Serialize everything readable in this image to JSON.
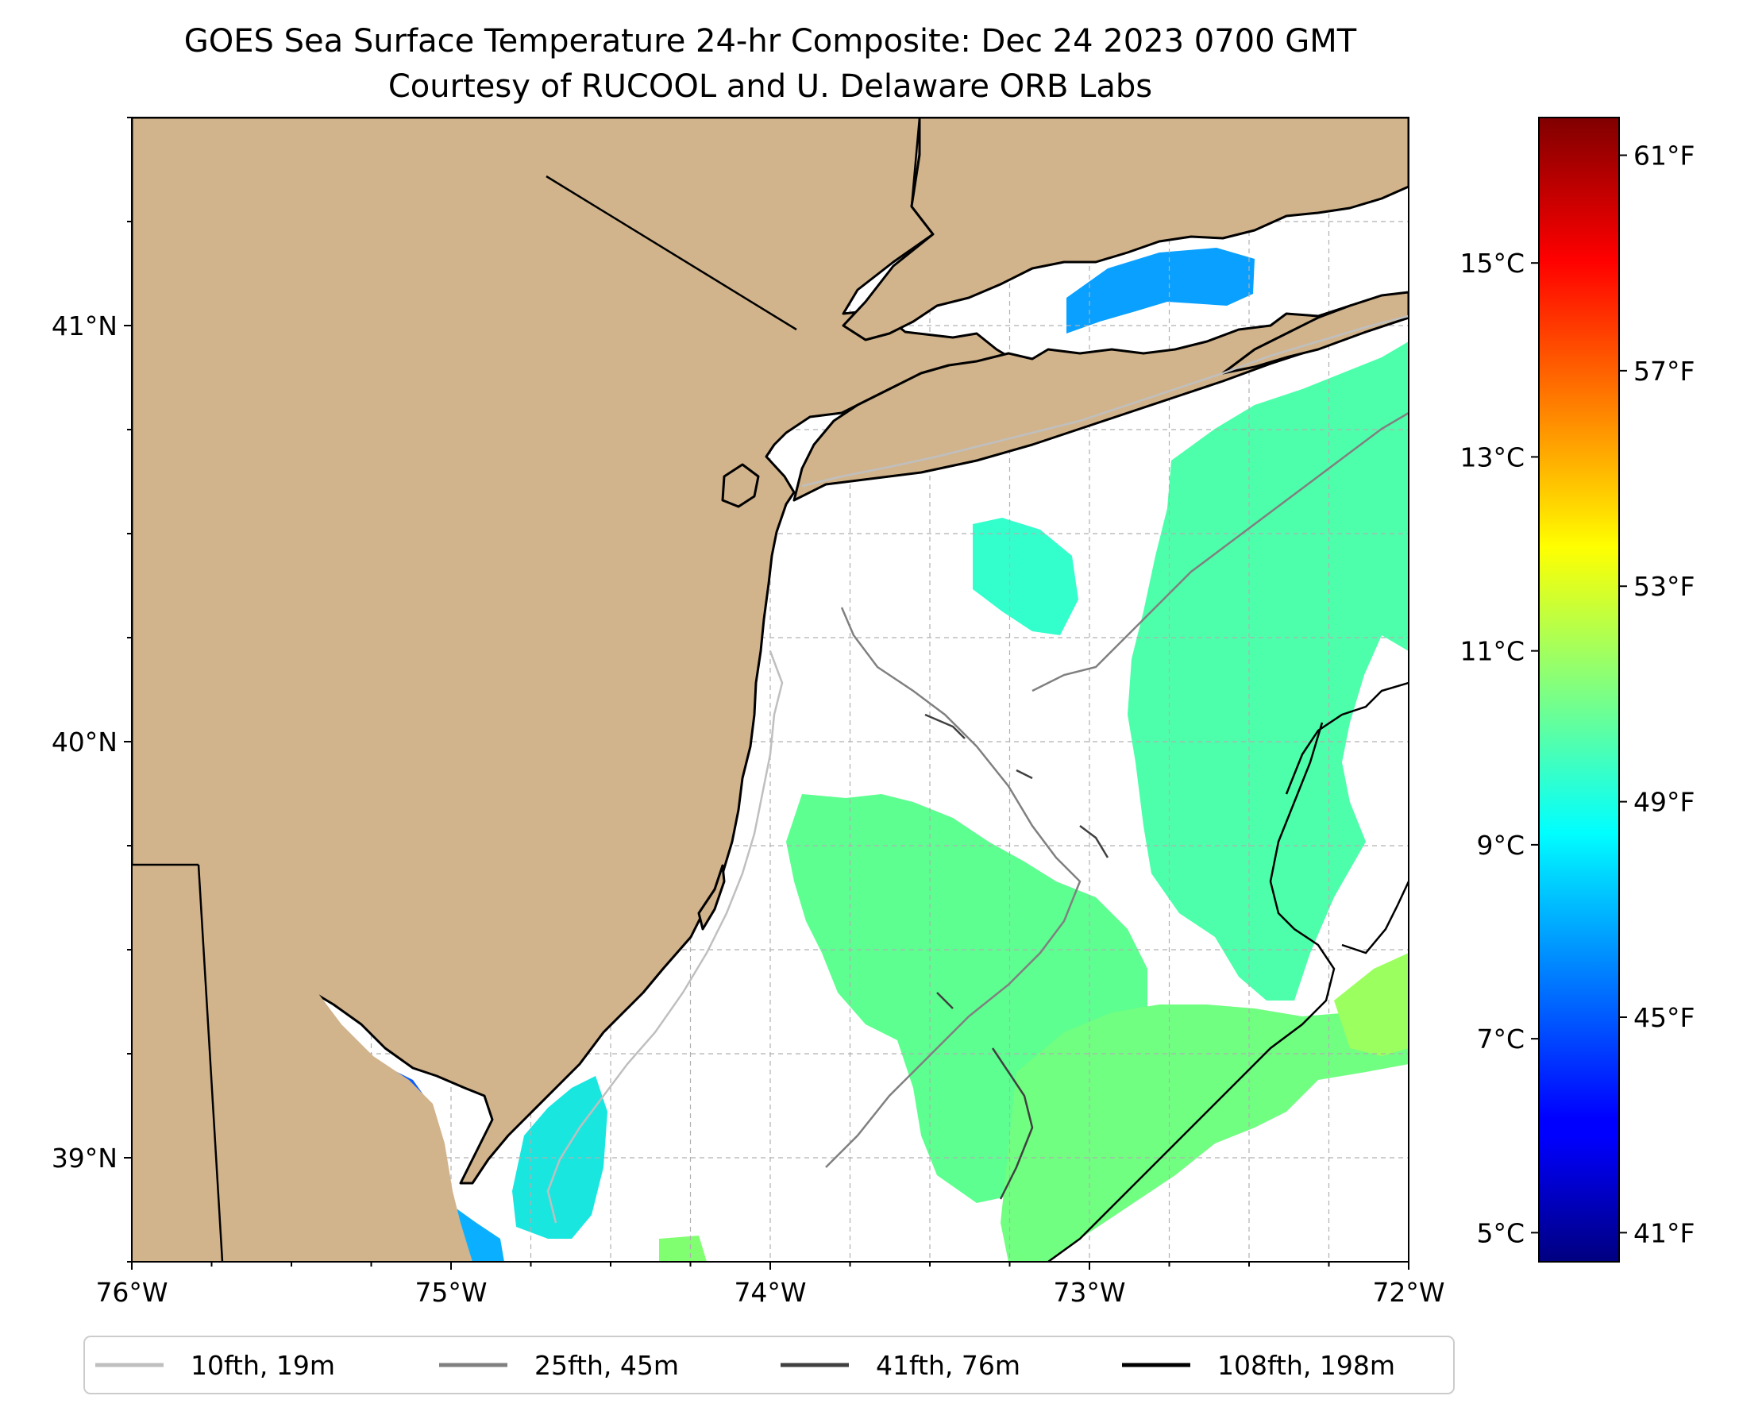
{
  "title": {
    "line1": "GOES Sea Surface Temperature 24-hr Composite: Dec 24 2023 0700 GMT",
    "line2": "Courtesy of RUCOOL and U. Delaware ORB Labs"
  },
  "map": {
    "lon_range": [
      -76,
      -72
    ],
    "lat_range": [
      38.75,
      41.5
    ],
    "lon_ticks": [
      {
        "value": -76,
        "label": "76°W"
      },
      {
        "value": -75,
        "label": "75°W"
      },
      {
        "value": -74,
        "label": "74°W"
      },
      {
        "value": -73,
        "label": "73°W"
      },
      {
        "value": -72,
        "label": "72°W"
      }
    ],
    "lat_ticks": [
      {
        "value": 39,
        "label": "39°N"
      },
      {
        "value": 40,
        "label": "40°N"
      },
      {
        "value": 41,
        "label": "41°N"
      }
    ],
    "gridlines": true,
    "colors": {
      "land": "#d2b48c",
      "ocean": "#ffffff",
      "coastline": "#000000",
      "grid": "#b0b0b0"
    }
  },
  "colorbar": {
    "range_c": [
      4.7,
      16.5
    ],
    "celsius_ticks": [
      {
        "value": 5,
        "label": "5°C"
      },
      {
        "value": 7,
        "label": "7°C"
      },
      {
        "value": 9,
        "label": "9°C"
      },
      {
        "value": 11,
        "label": "11°C"
      },
      {
        "value": 13,
        "label": "13°C"
      },
      {
        "value": 15,
        "label": "15°C"
      }
    ],
    "fahrenheit_ticks": [
      {
        "value": 41,
        "label": "41°F"
      },
      {
        "value": 45,
        "label": "45°F"
      },
      {
        "value": 49,
        "label": "49°F"
      },
      {
        "value": 53,
        "label": "53°F"
      },
      {
        "value": 57,
        "label": "57°F"
      },
      {
        "value": 61,
        "label": "61°F"
      }
    ],
    "colormap": "jet"
  },
  "legend": {
    "placement": "bottom",
    "items": [
      {
        "label": "10fth, 19m",
        "color": "#bfbfbf"
      },
      {
        "label": "25fth, 45m",
        "color": "#808080"
      },
      {
        "label": "41fth, 76m",
        "color": "#404040"
      },
      {
        "label": "108fth, 198m",
        "color": "#000000"
      }
    ]
  }
}
